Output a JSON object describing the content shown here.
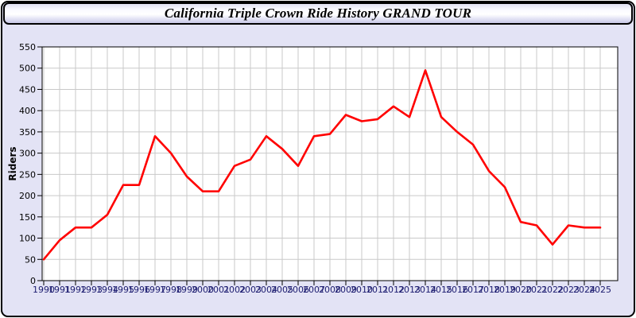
{
  "chart_data": {
    "type": "line",
    "title": "California Triple Crown Ride History GRAND TOUR",
    "ylabel": "Riders",
    "xlabel": "",
    "x": [
      1990,
      1991,
      1992,
      1993,
      1994,
      1995,
      1996,
      1997,
      1998,
      1999,
      2000,
      2001,
      2002,
      2003,
      2004,
      2005,
      2006,
      2007,
      2008,
      2009,
      2010,
      2011,
      2012,
      2013,
      2014,
      2015,
      2016,
      2017,
      2018,
      2019,
      2020,
      2021,
      2022,
      2023,
      2024,
      2025
    ],
    "series": [
      {
        "name": "Riders",
        "color": "#ff0000",
        "values": [
          50,
          95,
          125,
          125,
          155,
          225,
          225,
          340,
          300,
          245,
          210,
          210,
          270,
          285,
          340,
          310,
          270,
          340,
          345,
          390,
          375,
          380,
          410,
          385,
          495,
          385,
          350,
          320,
          258,
          220,
          138,
          130,
          85,
          130,
          125,
          125
        ]
      }
    ],
    "ylim": [
      0,
      550
    ],
    "ytick_step": 50,
    "grid": true,
    "legend": "none"
  },
  "colors": {
    "line_red": "#ff0000",
    "page_lavender": "#e3e3f5",
    "plot_background": "#ffffff",
    "grid_gray": "#c9c9c9",
    "axis_black": "#000000",
    "xtick_label_navy": "#1b1b6f",
    "ytick_label_black": "#000000"
  }
}
